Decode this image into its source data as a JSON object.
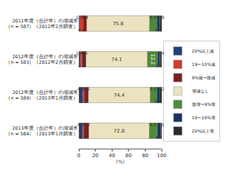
{
  "chart_data": {
    "type": "bar",
    "orientation": "horizontal",
    "stacked": true,
    "data_labels": true,
    "grid": false,
    "legend": "right",
    "x_label": "(%)",
    "xlim": [
      0,
      100
    ],
    "xticks": [
      0,
      20,
      40,
      60,
      80,
      100
    ],
    "categories": [
      "2011年度（合計年）の増減率\n（n = 587）（2012年2月調査）",
      "2012年度（合計年）の増減率\n（n = 583）（2012年2月調査）",
      "2012年度（合計年）の増減率\n（n = 589）（2013年1月調査）",
      "2013年度（合計年）の増減率\n（n = 584）（2013年1月調査）"
    ],
    "series": [
      {
        "name": "20%以上減",
        "color": "#1f3f7a",
        "values": [
          1.0,
          1.9,
          4.6,
          4.6
        ],
        "value_labels": [
          "1.0",
          "1.9",
          "4.6",
          "4.6"
        ]
      },
      {
        "name": "19〜10%減",
        "color": "#d03a2f",
        "values": [
          4.1,
          2.2,
          2.5,
          1.7
        ],
        "value_labels": [
          "4.1",
          "2.2",
          "2.5",
          "1.7"
        ]
      },
      {
        "name": "9%減〜微減",
        "color": "#7a1f1f",
        "values": [
          4.4,
          4.6,
          4.6,
          5.9
        ],
        "value_labels": [
          "4.4",
          "4.6",
          "4.6",
          "5.9"
        ]
      },
      {
        "name": "増減なし",
        "color": "#ebe3c0",
        "values": [
          75.8,
          74.1,
          74.4,
          72.8
        ],
        "value_labels": [
          "75.8",
          "74.1",
          "74.4",
          "72.8"
        ]
      },
      {
        "name": "微増〜9%増",
        "color": "#4f8a3c",
        "values": [
          8.8,
          12.2,
          8.1,
          9.6
        ],
        "value_labels": [
          "8.8",
          "12.2",
          "8.1",
          "9.6"
        ]
      },
      {
        "name": "10〜19%増",
        "color": "#1d3461",
        "values": [
          4.1,
          3.3,
          3.6,
          4.4
        ],
        "value_labels": [
          "4.1",
          "3.3",
          "3.6",
          "4.4"
        ]
      },
      {
        "name": "20%以上増",
        "color": "#2b2b2b",
        "values": [
          1.8,
          1.4,
          2.2,
          1.0
        ],
        "value_labels": [
          "1.8",
          "1.4",
          "2.2",
          "1.0"
        ]
      }
    ]
  }
}
